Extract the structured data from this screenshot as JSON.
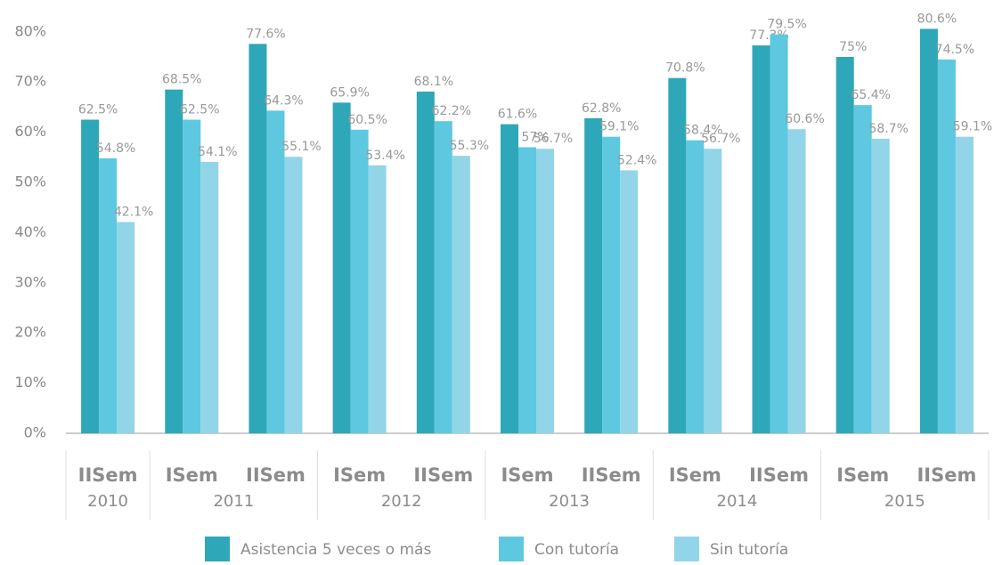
{
  "chart_data": {
    "type": "bar",
    "categories": [
      {
        "label": "IISem",
        "group": "2010"
      },
      {
        "label": "ISem",
        "group": "2011"
      },
      {
        "label": "IISem",
        "group": "2011"
      },
      {
        "label": "ISem",
        "group": "2012"
      },
      {
        "label": "IISem",
        "group": "2012"
      },
      {
        "label": "ISem",
        "group": "2013"
      },
      {
        "label": "IISem",
        "group": "2013"
      },
      {
        "label": "ISem",
        "group": "2014"
      },
      {
        "label": "IISem",
        "group": "2014"
      },
      {
        "label": "ISem",
        "group": "2015"
      },
      {
        "label": "IISem",
        "group": "2015"
      }
    ],
    "series": [
      {
        "name": "Asistencia 5 veces o más",
        "color": "#2ea7b9",
        "values": [
          62.5,
          68.5,
          77.6,
          65.9,
          68.1,
          61.6,
          62.8,
          70.8,
          77.3,
          75,
          80.6
        ],
        "value_labels": [
          "62.5%",
          "68.5%",
          "77.6%",
          "65.9%",
          "68.1%",
          "61.6%",
          "62.8%",
          "70.8%",
          "77.3%",
          "75%",
          "80.6%"
        ]
      },
      {
        "name": "Con tutoría",
        "color": "#5ec8e0",
        "values": [
          54.8,
          62.5,
          64.3,
          60.5,
          62.2,
          57,
          59.1,
          58.4,
          79.5,
          65.4,
          74.5
        ],
        "value_labels": [
          "54.8%",
          "62.5%",
          "64.3%",
          "60.5%",
          "62.2%",
          "57%",
          "59.1%",
          "58.4%",
          "79.5%",
          "65.4%",
          "74.5%"
        ]
      },
      {
        "name": "Sin tutoría",
        "color": "#92d5e8",
        "values": [
          42.1,
          54.1,
          55.1,
          53.4,
          55.3,
          56.7,
          52.4,
          56.7,
          60.6,
          58.7,
          59.1
        ],
        "value_labels": [
          "42.1%",
          "54.1%",
          "55.1%",
          "53.4%",
          "55.3%",
          "56.7%",
          "52.4%",
          "56.7%",
          "60.6%",
          "58.7%",
          "59.1%"
        ]
      }
    ],
    "ylim": [
      0,
      82
    ],
    "yticks": [
      {
        "value": 0,
        "label": "0%"
      },
      {
        "value": 10,
        "label": "10%"
      },
      {
        "value": 20,
        "label": "20%"
      },
      {
        "value": 30,
        "label": "30%"
      },
      {
        "value": 40,
        "label": "40%"
      },
      {
        "value": 50,
        "label": "50%"
      },
      {
        "value": 60,
        "label": "60%"
      },
      {
        "value": 70,
        "label": "70%"
      },
      {
        "value": 80,
        "label": "80%"
      }
    ],
    "grid": false,
    "legend": "bottom"
  }
}
